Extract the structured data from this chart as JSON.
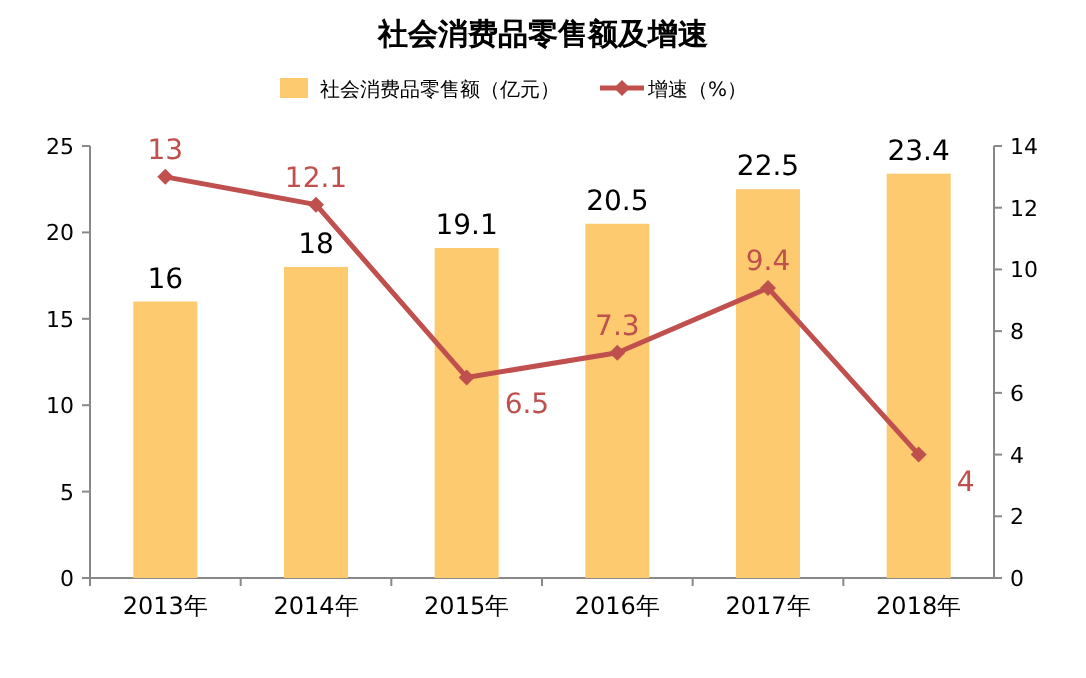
{
  "chart_data": {
    "type": "bar",
    "title": "社会消费品零售额及增速",
    "categories": [
      "2013年",
      "2014年",
      "2015年",
      "2016年",
      "2017年",
      "2018年"
    ],
    "series": [
      {
        "name": "社会消费品零售额（亿元）",
        "color": "#fdca70",
        "values": [
          16,
          18,
          19.1,
          20.5,
          22.5,
          23.4
        ]
      },
      {
        "name": "增速（%）",
        "type": "line",
        "axis": "y2",
        "color": "#c0504d",
        "values": [
          13,
          12.1,
          6.5,
          7.3,
          9.4,
          4
        ]
      }
    ],
    "ylim": [
      0,
      25
    ],
    "yticks": [
      0,
      5,
      10,
      15,
      20,
      25
    ],
    "y2lim": [
      0,
      14
    ],
    "y2ticks": [
      0,
      2,
      4,
      6,
      8,
      10,
      12,
      14
    ],
    "data_labels": true,
    "legend": "top",
    "marker": "diamond",
    "grid": false
  }
}
